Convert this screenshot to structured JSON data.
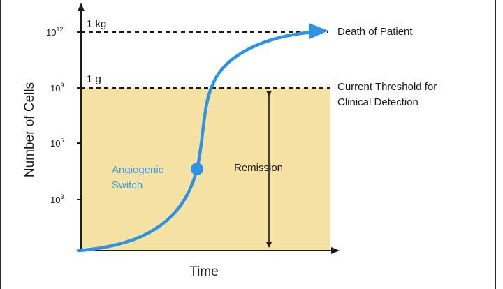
{
  "diagram": {
    "y_axis_label": "Number of Cells",
    "x_axis_label": "Time",
    "ticks": [
      {
        "base": "10",
        "exp": "3"
      },
      {
        "base": "10",
        "exp": "6"
      },
      {
        "base": "10",
        "exp": "9"
      },
      {
        "base": "10",
        "exp": "12"
      }
    ],
    "mass_labels": {
      "kg": "1 kg",
      "g": "1 g"
    },
    "threshold_label": [
      "Current Threshold for",
      "Clinical Detection"
    ],
    "death_label": "Death of Patient",
    "switch_label": [
      "Angiogenic",
      "Switch"
    ],
    "remission_label": "Remission",
    "colors": {
      "curve": "#2b93e8",
      "detection_region": "#f6e3a4",
      "switch_text": "#3f9be6",
      "axis": "#1a1a1a"
    }
  }
}
